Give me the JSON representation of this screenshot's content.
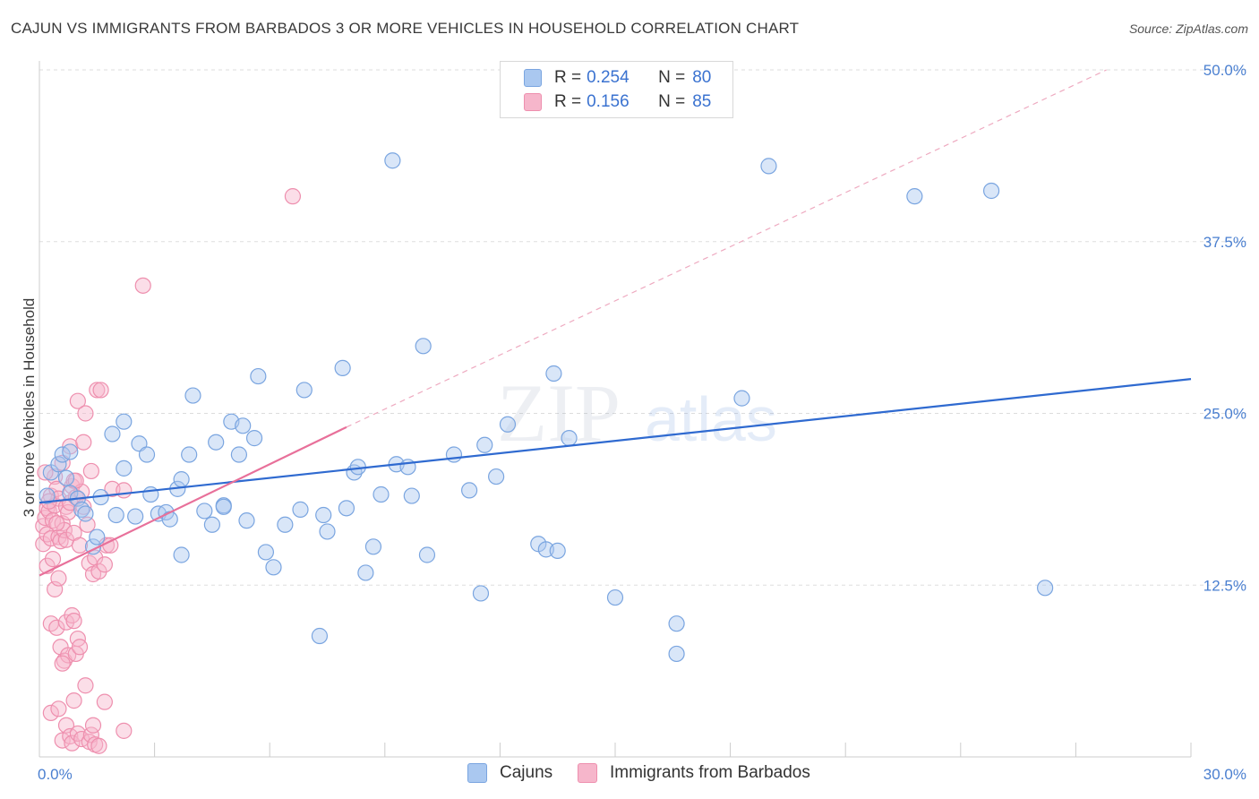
{
  "title": "CAJUN VS IMMIGRANTS FROM BARBADOS 3 OR MORE VEHICLES IN HOUSEHOLD CORRELATION CHART",
  "source": "Source: ZipAtlas.com",
  "watermark": {
    "zip": "ZIP",
    "atlas": "atlas"
  },
  "colors": {
    "blue_fill": "#aac8f0",
    "blue_stroke": "#7aa5e0",
    "blue_line": "#2f6ad0",
    "pink_fill": "#f6b6cb",
    "pink_stroke": "#ee8fae",
    "pink_line": "#e8709a",
    "tick_text": "#4a7fd0",
    "grid": "#dddddd"
  },
  "legend": {
    "rows": [
      {
        "r_label": "R =",
        "r_value": "0.254",
        "n_label": "N =",
        "n_value": "80",
        "color": "#aac8f0"
      },
      {
        "r_label": "R =",
        "r_value": "0.156",
        "n_label": "N =",
        "n_value": "85",
        "color": "#f6b6cb"
      }
    ]
  },
  "bottom_legend": [
    {
      "label": "Cajuns",
      "color": "#aac8f0"
    },
    {
      "label": "Immigrants from Barbados",
      "color": "#f6b6cb"
    }
  ],
  "chart_data": {
    "type": "scatter",
    "ylabel": "3 or more Vehicles in Household",
    "xlim": [
      0,
      30
    ],
    "ylim": [
      0,
      50
    ],
    "x_ticks": [
      {
        "value": 0,
        "label": "0.0%"
      },
      {
        "value": 30,
        "label": "30.0%"
      }
    ],
    "y_ticks": [
      {
        "value": 12.5,
        "label": "12.5%"
      },
      {
        "value": 25,
        "label": "25.0%"
      },
      {
        "value": 37.5,
        "label": "37.5%"
      },
      {
        "value": 50,
        "label": "50.0%"
      }
    ],
    "grid": true,
    "series": [
      {
        "name": "Cajuns",
        "trend": {
          "x0": 0,
          "y0": 18.5,
          "x1": 30,
          "y1": 27.5
        },
        "points": [
          [
            0.2,
            19.0
          ],
          [
            0.3,
            20.7
          ],
          [
            0.5,
            21.3
          ],
          [
            0.6,
            22.0
          ],
          [
            0.8,
            22.2
          ],
          [
            0.7,
            20.3
          ],
          [
            0.8,
            19.2
          ],
          [
            1.0,
            18.8
          ],
          [
            1.1,
            18.0
          ],
          [
            1.2,
            17.7
          ],
          [
            1.4,
            15.3
          ],
          [
            1.5,
            16.0
          ],
          [
            1.6,
            18.9
          ],
          [
            1.9,
            23.5
          ],
          [
            2.0,
            17.6
          ],
          [
            2.2,
            24.4
          ],
          [
            2.2,
            21.0
          ],
          [
            2.5,
            17.5
          ],
          [
            2.6,
            22.8
          ],
          [
            2.9,
            19.1
          ],
          [
            3.1,
            17.7
          ],
          [
            3.3,
            17.8
          ],
          [
            3.4,
            17.3
          ],
          [
            3.6,
            19.5
          ],
          [
            3.7,
            14.7
          ],
          [
            3.7,
            20.2
          ],
          [
            3.9,
            22.0
          ],
          [
            4.0,
            26.3
          ],
          [
            4.3,
            17.9
          ],
          [
            4.5,
            16.9
          ],
          [
            4.6,
            22.9
          ],
          [
            4.8,
            18.3
          ],
          [
            5.0,
            24.4
          ],
          [
            5.2,
            22.0
          ],
          [
            5.3,
            24.1
          ],
          [
            5.4,
            17.2
          ],
          [
            5.6,
            23.2
          ],
          [
            5.7,
            27.7
          ],
          [
            5.9,
            14.9
          ],
          [
            6.1,
            13.8
          ],
          [
            6.4,
            16.9
          ],
          [
            6.8,
            18.0
          ],
          [
            6.9,
            26.7
          ],
          [
            7.3,
            8.8
          ],
          [
            7.4,
            17.6
          ],
          [
            7.5,
            16.4
          ],
          [
            7.9,
            28.3
          ],
          [
            8.0,
            18.1
          ],
          [
            8.2,
            20.7
          ],
          [
            8.3,
            21.1
          ],
          [
            8.5,
            13.4
          ],
          [
            8.7,
            15.3
          ],
          [
            8.9,
            19.1
          ],
          [
            9.2,
            43.4
          ],
          [
            9.3,
            21.3
          ],
          [
            9.7,
            19.0
          ],
          [
            10.0,
            29.9
          ],
          [
            10.1,
            14.7
          ],
          [
            10.8,
            22.0
          ],
          [
            11.2,
            19.4
          ],
          [
            11.5,
            11.9
          ],
          [
            11.6,
            22.7
          ],
          [
            11.9,
            20.4
          ],
          [
            12.2,
            24.2
          ],
          [
            13.0,
            15.5
          ],
          [
            13.2,
            15.1
          ],
          [
            13.4,
            27.9
          ],
          [
            13.8,
            23.2
          ],
          [
            15.0,
            11.6
          ],
          [
            16.6,
            9.7
          ],
          [
            16.6,
            7.5
          ],
          [
            18.3,
            26.1
          ],
          [
            19.0,
            43.0
          ],
          [
            22.8,
            40.8
          ],
          [
            24.8,
            41.2
          ],
          [
            26.2,
            12.3
          ],
          [
            13.5,
            15.0
          ],
          [
            9.6,
            21.1
          ],
          [
            4.8,
            18.2
          ],
          [
            2.8,
            22.0
          ]
        ]
      },
      {
        "name": "Immigrants from Barbados",
        "trend": {
          "x0": 0,
          "y0": 13.2,
          "x1": 8.0,
          "y1": 24.0
        },
        "dashed_extension": {
          "x0": 8.0,
          "y0": 24.0,
          "x1": 27.8,
          "y1": 50.0
        },
        "points": [
          [
            0.1,
            15.5
          ],
          [
            0.1,
            16.8
          ],
          [
            0.15,
            17.4
          ],
          [
            0.2,
            18.1
          ],
          [
            0.2,
            16.2
          ],
          [
            0.25,
            17.9
          ],
          [
            0.3,
            19.0
          ],
          [
            0.3,
            15.9
          ],
          [
            0.35,
            17.2
          ],
          [
            0.4,
            18.3
          ],
          [
            0.4,
            20.4
          ],
          [
            0.45,
            19.5
          ],
          [
            0.5,
            16.0
          ],
          [
            0.5,
            18.8
          ],
          [
            0.55,
            15.7
          ],
          [
            0.6,
            17.0
          ],
          [
            0.6,
            21.4
          ],
          [
            0.65,
            16.5
          ],
          [
            0.7,
            18.2
          ],
          [
            0.7,
            15.8
          ],
          [
            0.75,
            17.8
          ],
          [
            0.8,
            18.5
          ],
          [
            0.8,
            22.6
          ],
          [
            0.85,
            19.7
          ],
          [
            0.9,
            20.1
          ],
          [
            0.9,
            16.3
          ],
          [
            0.95,
            18.9
          ],
          [
            1.0,
            25.9
          ],
          [
            1.05,
            15.4
          ],
          [
            1.1,
            19.3
          ],
          [
            1.15,
            22.9
          ],
          [
            1.2,
            25.0
          ],
          [
            1.25,
            16.9
          ],
          [
            1.3,
            14.1
          ],
          [
            1.35,
            20.8
          ],
          [
            1.4,
            13.3
          ],
          [
            1.45,
            14.5
          ],
          [
            1.5,
            26.7
          ],
          [
            1.55,
            13.5
          ],
          [
            1.6,
            26.7
          ],
          [
            1.7,
            14.0
          ],
          [
            1.75,
            15.4
          ],
          [
            1.85,
            15.4
          ],
          [
            1.9,
            19.5
          ],
          [
            0.3,
            9.7
          ],
          [
            0.45,
            9.4
          ],
          [
            0.55,
            8.0
          ],
          [
            0.65,
            7.0
          ],
          [
            0.7,
            9.8
          ],
          [
            0.75,
            7.4
          ],
          [
            0.85,
            10.3
          ],
          [
            0.9,
            9.9
          ],
          [
            0.95,
            7.5
          ],
          [
            1.0,
            8.6
          ],
          [
            1.05,
            8.0
          ],
          [
            0.4,
            12.2
          ],
          [
            0.5,
            13.0
          ],
          [
            0.3,
            3.2
          ],
          [
            0.5,
            3.5
          ],
          [
            0.6,
            1.2
          ],
          [
            0.7,
            2.3
          ],
          [
            0.8,
            1.5
          ],
          [
            0.85,
            1.0
          ],
          [
            0.9,
            4.1
          ],
          [
            1.0,
            1.7
          ],
          [
            1.1,
            1.3
          ],
          [
            1.2,
            5.2
          ],
          [
            1.3,
            1.1
          ],
          [
            1.35,
            1.6
          ],
          [
            1.4,
            2.3
          ],
          [
            1.45,
            0.9
          ],
          [
            1.55,
            0.8
          ],
          [
            1.7,
            4.0
          ],
          [
            2.2,
            1.9
          ],
          [
            2.2,
            19.4
          ],
          [
            2.7,
            34.3
          ],
          [
            6.6,
            40.8
          ],
          [
            0.2,
            13.9
          ],
          [
            0.35,
            14.4
          ],
          [
            0.6,
            6.8
          ],
          [
            0.15,
            20.7
          ],
          [
            0.25,
            18.6
          ],
          [
            1.15,
            18.2
          ],
          [
            0.95,
            20.1
          ],
          [
            0.45,
            17.0
          ]
        ]
      }
    ]
  }
}
